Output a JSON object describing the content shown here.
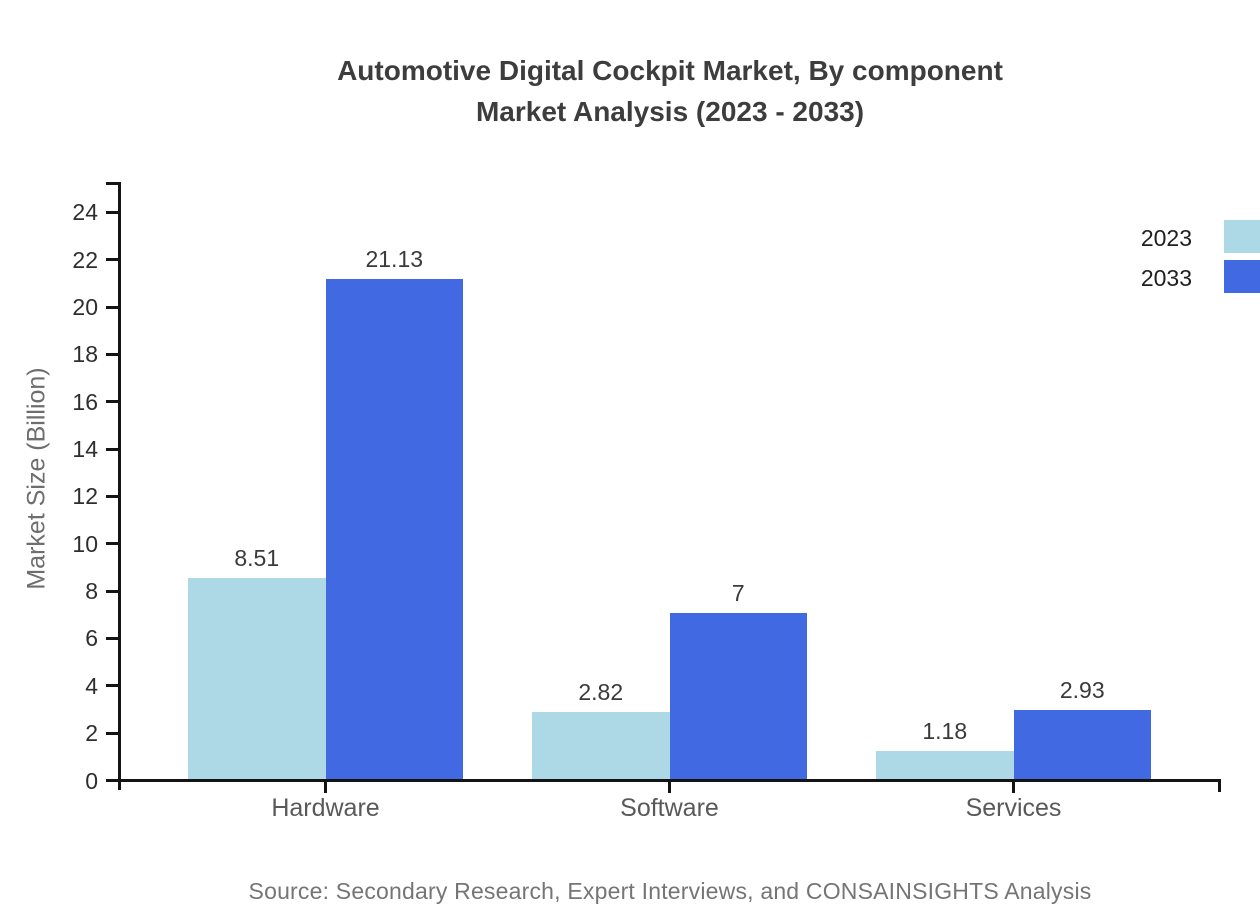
{
  "title": {
    "line1": "Automotive Digital Cockpit Market, By component",
    "line2": "Market Analysis (2023 - 2033)"
  },
  "chart_data": {
    "type": "bar",
    "title": "Automotive Digital Cockpit Market, By component Market Analysis (2023 - 2033)",
    "categories": [
      "Hardware",
      "Software",
      "Services"
    ],
    "series": [
      {
        "name": "2023",
        "color": "#ADD8E6",
        "values": [
          8.51,
          2.82,
          1.18
        ],
        "labels": [
          "8.51",
          "2.82",
          "1.18"
        ]
      },
      {
        "name": "2033",
        "color": "#4169E1",
        "values": [
          21.13,
          7.0,
          2.93
        ],
        "labels": [
          "21.13",
          "7",
          "2.93"
        ]
      }
    ],
    "xlabel": "",
    "ylabel": "Market Size (Billion)",
    "ylim": [
      0,
      25.3
    ],
    "yticks": [
      0,
      2,
      4,
      6,
      8,
      10,
      12,
      14,
      16,
      18,
      20,
      22,
      24
    ],
    "grid": false,
    "legend_position": "top-right"
  },
  "source": "Source: Secondary Research, Expert Interviews, and CONSAINSIGHTS Analysis",
  "colors": {
    "series_2023": "#ADD8E6",
    "series_2033": "#4169E1",
    "axis": "#141414",
    "title_text": "#3d3d3d",
    "muted_text": "#757575"
  }
}
